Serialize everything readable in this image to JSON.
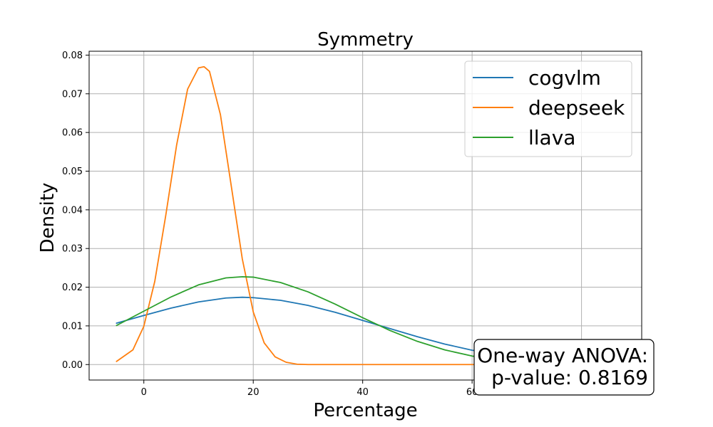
{
  "chart_data": {
    "type": "line",
    "title": "Symmetry",
    "xlabel": "Percentage",
    "ylabel": "Density",
    "xlim": [
      -10,
      91
    ],
    "ylim": [
      -0.004,
      0.081
    ],
    "xticks": [
      0,
      20,
      40,
      60,
      80
    ],
    "yticks": [
      0.0,
      0.01,
      0.02,
      0.03,
      0.04,
      0.05,
      0.06,
      0.07,
      0.08
    ],
    "ytick_labels": [
      "0.00",
      "0.01",
      "0.02",
      "0.03",
      "0.04",
      "0.05",
      "0.06",
      "0.07",
      "0.08"
    ],
    "grid": true,
    "legend_position": "top-right",
    "series": [
      {
        "name": "cogvlm",
        "color": "#1f77b4",
        "x": [
          -5,
          0,
          5,
          10,
          15,
          18,
          20,
          25,
          30,
          35,
          40,
          45,
          50,
          55,
          60,
          65,
          70,
          75,
          80,
          85
        ],
        "y": [
          0.0107,
          0.0127,
          0.0146,
          0.0162,
          0.0172,
          0.0174,
          0.0173,
          0.0166,
          0.0153,
          0.0135,
          0.0114,
          0.0093,
          0.0072,
          0.0053,
          0.0037,
          0.0025,
          0.0015,
          0.0009,
          0.0005,
          0.0003
        ]
      },
      {
        "name": "deepseek",
        "color": "#ff7f0e",
        "x": [
          -5,
          -2,
          0,
          2,
          4,
          6,
          8,
          10,
          11,
          12,
          14,
          16,
          18,
          20,
          22,
          24,
          26,
          28,
          30,
          35,
          40,
          50,
          60,
          70,
          80,
          85
        ],
        "y": [
          0.0008,
          0.0038,
          0.0099,
          0.0215,
          0.0385,
          0.0568,
          0.0712,
          0.0767,
          0.077,
          0.0758,
          0.0646,
          0.046,
          0.0273,
          0.0136,
          0.0056,
          0.002,
          0.0006,
          0.0001,
          0.0,
          0.0,
          0.0,
          0.0,
          0.0,
          0.0,
          0.0,
          0.0
        ]
      },
      {
        "name": "llava",
        "color": "#2ca02c",
        "x": [
          -5,
          0,
          5,
          10,
          15,
          18,
          20,
          25,
          30,
          35,
          40,
          45,
          50,
          55,
          60,
          65,
          70,
          75,
          80,
          85
        ],
        "y": [
          0.0101,
          0.0138,
          0.0175,
          0.0206,
          0.0224,
          0.0227,
          0.0226,
          0.0212,
          0.0188,
          0.0156,
          0.0121,
          0.0088,
          0.006,
          0.0038,
          0.0022,
          0.0012,
          0.0006,
          0.0003,
          0.0001,
          0.0001
        ]
      }
    ],
    "annotation": {
      "line1": "One-way ANOVA:",
      "line2": "p-value: 0.8169",
      "position": "bottom-right"
    }
  }
}
